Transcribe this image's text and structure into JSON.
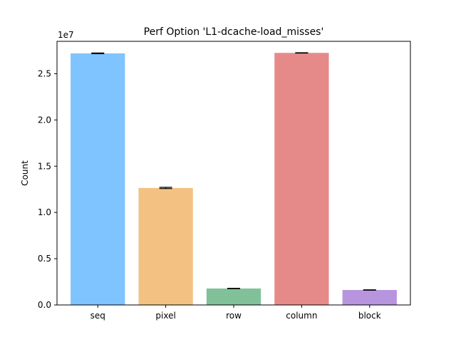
{
  "chart_data": {
    "type": "bar",
    "title": "Perf Option 'L1-dcache-load_misses'",
    "xlabel": "",
    "ylabel": "Count",
    "y_offset_label": "1e7",
    "y_multiplier": 10000000,
    "ylim": [
      0,
      28500000
    ],
    "grid": false,
    "categories": [
      "seq",
      "pixel",
      "row",
      "column",
      "block"
    ],
    "values": [
      27200000,
      12650000,
      1780000,
      27250000,
      1620000
    ],
    "errors": [
      40000,
      70000,
      20000,
      20000,
      20000
    ],
    "colors": [
      "#7fc3ff",
      "#f3c283",
      "#80c199",
      "#e68a89",
      "#b795de"
    ],
    "yticks": [
      0,
      5000000,
      10000000,
      15000000,
      20000000,
      25000000
    ],
    "ytick_labels": [
      "0.0",
      "0.5",
      "1.0",
      "1.5",
      "2.0",
      "2.5"
    ]
  }
}
